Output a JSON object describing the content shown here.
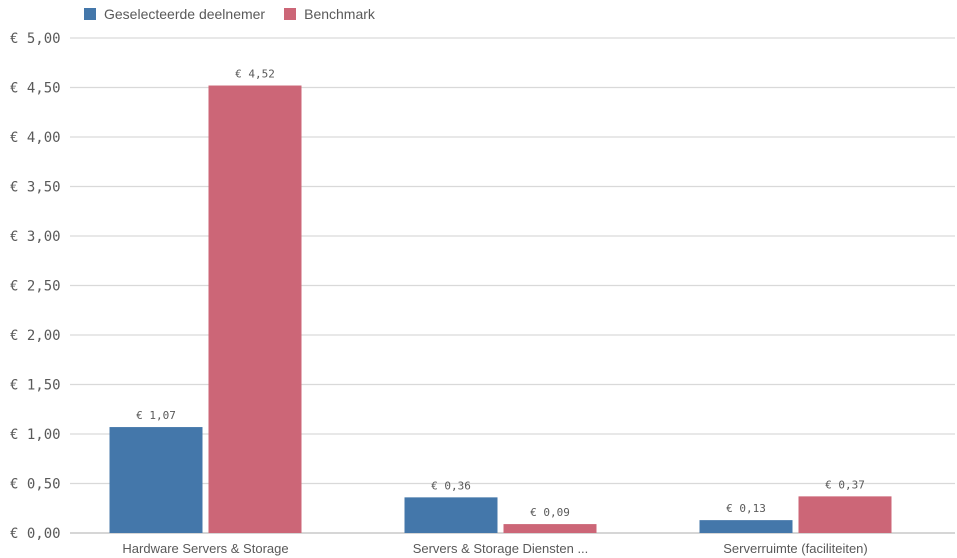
{
  "chart_data": {
    "type": "bar",
    "categories": [
      "Hardware Servers & Storage",
      "Servers & Storage Diensten ...",
      "Serverruimte (faciliteiten)"
    ],
    "series": [
      {
        "name": "Geselecteerde deelnemer",
        "values": [
          1.07,
          0.36,
          0.13
        ],
        "labels": [
          "€ 1,07",
          "€ 0,36",
          "€ 0,13"
        ],
        "color": "#4477aa"
      },
      {
        "name": "Benchmark",
        "values": [
          4.52,
          0.09,
          0.37
        ],
        "labels": [
          "€ 4,52",
          "€ 0,09",
          "€ 0,37"
        ],
        "color": "#cc6677"
      }
    ],
    "yticks": [
      0,
      0.5,
      1,
      1.5,
      2,
      2.5,
      3,
      3.5,
      4,
      4.5,
      5
    ],
    "ytick_labels": [
      "€ 0,00",
      "€ 0,50",
      "€ 1,00",
      "€ 1,50",
      "€ 2,00",
      "€ 2,50",
      "€ 3,00",
      "€ 3,50",
      "€ 4,00",
      "€ 4,50",
      "€ 5,00"
    ],
    "ylim": [
      0,
      5
    ],
    "grid": true,
    "legend_position": "top-left"
  }
}
